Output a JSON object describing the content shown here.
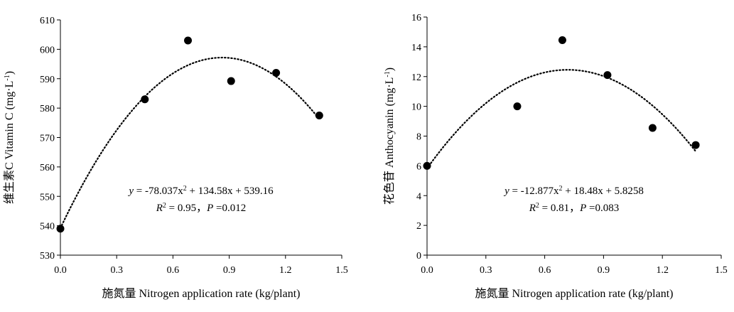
{
  "chart_data": [
    {
      "type": "scatter",
      "xlabel": "施氮量 Nitrogen application rate (kg/plant)",
      "ylabel": "维生素C Vitamin C (mg·L⁻¹)",
      "xlim": [
        0,
        1.5
      ],
      "ylim": [
        530,
        610
      ],
      "xticks": [
        "0.0",
        "0.3",
        "0.6",
        "0.9",
        "1.2",
        "1.5"
      ],
      "yticks": [
        "530",
        "540",
        "550",
        "560",
        "570",
        "580",
        "590",
        "600",
        "610"
      ],
      "points": [
        {
          "x": 0.0,
          "y": 539.0
        },
        {
          "x": 0.45,
          "y": 583.0
        },
        {
          "x": 0.68,
          "y": 603.0
        },
        {
          "x": 0.91,
          "y": 589.2
        },
        {
          "x": 1.15,
          "y": 592.0
        },
        {
          "x": 1.38,
          "y": 577.5
        }
      ],
      "trendline": {
        "type": "polynomial",
        "a": -78.037,
        "b": 134.58,
        "c": 539.16,
        "style": "dotted"
      },
      "equation": "y = -78.037x² + 134.58x + 539.16",
      "stats": "R² = 0.95，P =0.012",
      "grid": false
    },
    {
      "type": "scatter",
      "xlabel": "施氮量 Nitrogen application rate (kg/plant)",
      "ylabel": "花色苷 Anthocyanin (mg·L⁻¹)",
      "xlim": [
        0,
        1.5
      ],
      "ylim": [
        0,
        16
      ],
      "xticks": [
        "0.0",
        "0.3",
        "0.6",
        "0.9",
        "1.2",
        "1.5"
      ],
      "yticks": [
        "0",
        "2",
        "4",
        "6",
        "8",
        "10",
        "12",
        "14",
        "16"
      ],
      "points": [
        {
          "x": 0.0,
          "y": 6.0
        },
        {
          "x": 0.46,
          "y": 10.0
        },
        {
          "x": 0.69,
          "y": 14.45
        },
        {
          "x": 0.92,
          "y": 12.1
        },
        {
          "x": 1.15,
          "y": 8.55
        },
        {
          "x": 1.37,
          "y": 7.4
        }
      ],
      "trendline": {
        "type": "polynomial",
        "a": -12.877,
        "b": 18.48,
        "c": 5.8258,
        "style": "dotted"
      },
      "equation": "y = -12.877x² + 18.48x + 5.8258",
      "stats": "R² = 0.81，P =0.083",
      "grid": false
    }
  ]
}
